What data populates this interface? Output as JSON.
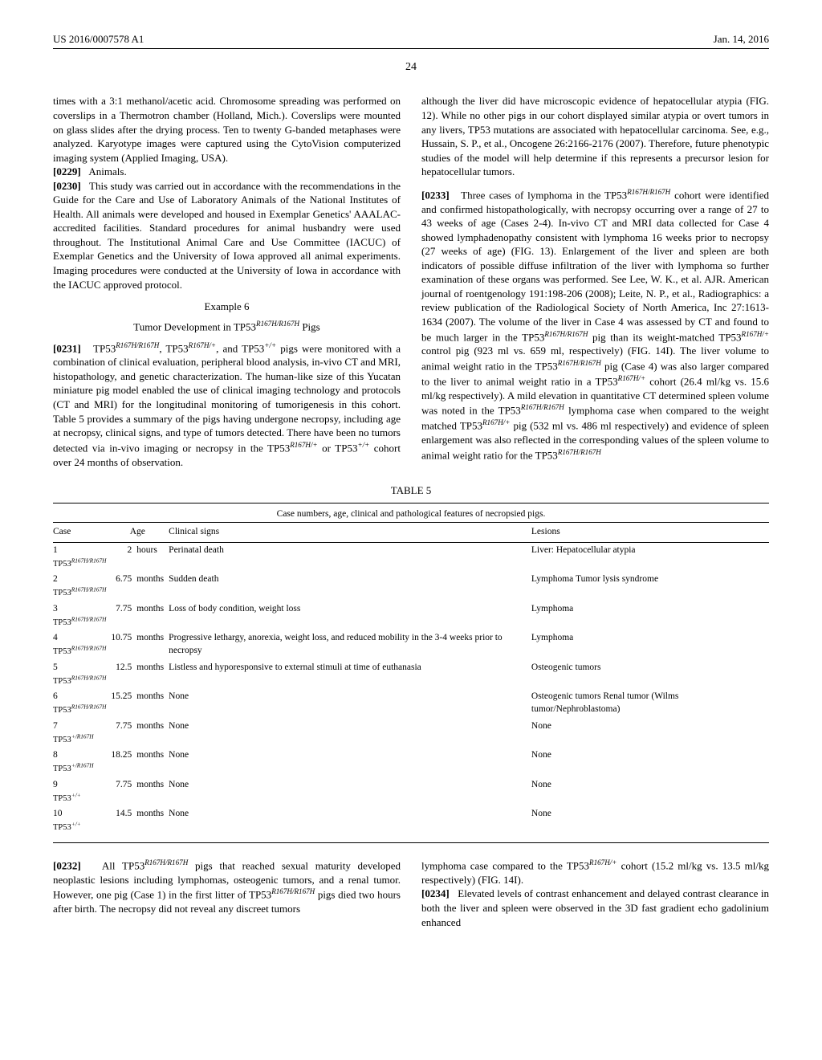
{
  "header": {
    "left": "US 2016/0007578 A1",
    "right": "Jan. 14, 2016"
  },
  "page_number": "24",
  "col1": {
    "p1": "times with a 3:1 methanol/acetic acid. Chromosome spreading was performed on coverslips in a Thermotron chamber (Holland, Mich.). Coverslips were mounted on glass slides after the drying process. Ten to twenty G-banded metaphases were analyzed. Karyotype images were captured using the CytoVision computerized imaging system (Applied Imaging, USA).",
    "p2_num": "[0229]",
    "p2": "Animals.",
    "p3_num": "[0230]",
    "p3": "This study was carried out in accordance with the recommendations in the Guide for the Care and Use of Laboratory Animals of the National Institutes of Health. All animals were developed and housed in Exemplar Genetics' AAALAC-accredited facilities. Standard procedures for animal husbandry were used throughout. The Institutional Animal Care and Use Committee (IACUC) of Exemplar Genetics and the University of Iowa approved all animal experiments. Imaging procedures were conducted at the University of Iowa in accordance with the IACUC approved protocol.",
    "ex_title": "Example 6",
    "sub_title": "Tumor Development in TP53",
    "sub_title_sup": "R167H/R167H",
    "sub_title_tail": " Pigs",
    "p4_num": "[0231]",
    "p4_a": "TP53",
    "p4_sup1": "R167H/R167H",
    "p4_b": ", TP53",
    "p4_sup2": "R167H/+",
    "p4_c": ", and TP53",
    "p4_sup3": "+/+",
    "p4_d": " pigs were monitored with a combination of clinical evaluation, peripheral blood analysis, in-vivo CT and MRI, histopathology, and genetic characterization. The human-like size of this Yucatan miniature pig model enabled the use of clinical imaging technology and protocols (CT and MRI) for the longitudinal monitoring of tumorigenesis in this cohort. Table 5 provides a summary of the pigs having undergone necropsy, including age at necropsy, clinical signs, and type of tumors detected. There have been no tumors detected via in-vivo imaging or necropsy in the TP53",
    "p4_sup4": "R167H/+",
    "p4_e": " or TP53",
    "p4_sup5": "+/+",
    "p4_f": " cohort over 24 months of observation."
  },
  "col2": {
    "p1": "although the liver did have microscopic evidence of hepatocellular atypia (FIG. 12). While no other pigs in our cohort displayed similar atypia or overt tumors in any livers, TP53 mutations are associated with hepatocellular carcinoma. See, e.g., Hussain, S. P., et al., Oncogene 26:2166-2176 (2007). Therefore, future phenotypic studies of the model will help determine if this represents a precursor lesion for hepatocellular tumors.",
    "p2_num": "[0233]",
    "p2_a": "Three cases of lymphoma in the TP53",
    "p2_sup1": "R167H/R167H",
    "p2_b": " cohort were identified and confirmed histopathologically, with necropsy occurring over a range of 27 to 43 weeks of age (Cases 2-4). In-vivo CT and MRI data collected for Case 4 showed lymphadenopathy consistent with lymphoma 16 weeks prior to necropsy (27 weeks of age) (FIG. 13). Enlargement of the liver and spleen are both indicators of possible diffuse infiltration of the liver with lymphoma so further examination of these organs was performed. See Lee, W. K., et al. AJR. American journal of roentgenology 191:198-206 (2008); Leite, N. P., et al., Radiographics: a review publication of the Radiological Society of North America, Inc 27:1613-1634 (2007). The volume of the liver in Case 4 was assessed by CT and found to be much larger in the TP53",
    "p2_sup2": "R167H/R167H",
    "p2_c": " pig than its weight-matched TP53",
    "p2_sup3": "R167H/+",
    "p2_d": " control pig (923 ml vs. 659 ml, respectively) (FIG. 14I). The liver volume to animal weight ratio in the TP53",
    "p2_sup4": "R167H/R167H",
    "p2_e": " pig (Case 4) was also larger compared to the liver to animal weight ratio in a TP53",
    "p2_sup5": "R167H/+",
    "p2_f": " cohort (26.4 ml/kg vs. 15.6 ml/kg respectively). A mild elevation in quantitative CT determined spleen volume was noted in the TP53",
    "p2_sup6": "R167H/R167H",
    "p2_g": " lymphoma case when compared to the weight matched TP53",
    "p2_sup7": "R167H/+",
    "p2_h": " pig (532 ml vs. 486 ml respectively) and evidence of spleen enlargement was also reflected in the corresponding values of the spleen volume to animal weight ratio for the TP53",
    "p2_sup8": "R167H/R167H"
  },
  "table": {
    "label": "TABLE 5",
    "caption": "Case numbers, age, clinical and pathological features of necropsied pigs.",
    "headers": {
      "c1": "Case",
      "c2": "Age",
      "c3": "Clinical signs",
      "c4": "Lesions"
    },
    "rows": [
      {
        "case": "1",
        "geno": "TP53",
        "geno_sup": "R167H/R167H",
        "age_n": "2",
        "age_u": "hours",
        "signs": "Perinatal death",
        "lesions": "Liver: Hepatocellular atypia"
      },
      {
        "case": "2",
        "geno": "TP53",
        "geno_sup": "R167H/R167H",
        "age_n": "6.75",
        "age_u": "months",
        "signs": "Sudden death",
        "lesions": "Lymphoma Tumor lysis syndrome"
      },
      {
        "case": "3",
        "geno": "TP53",
        "geno_sup": "R167H/R167H",
        "age_n": "7.75",
        "age_u": "months",
        "signs": "Loss of body condition, weight loss",
        "lesions": "Lymphoma"
      },
      {
        "case": "4",
        "geno": "TP53",
        "geno_sup": "R167H/R167H",
        "age_n": "10.75",
        "age_u": "months",
        "signs": "Progressive lethargy, anorexia, weight loss, and reduced mobility in the 3-4 weeks prior to necropsy",
        "lesions": "Lymphoma"
      },
      {
        "case": "5",
        "geno": "TP53",
        "geno_sup": "R167H/R167H",
        "age_n": "12.5",
        "age_u": "months",
        "signs": "Listless and hyporesponsive to external stimuli at time of euthanasia",
        "lesions": "Osteogenic tumors"
      },
      {
        "case": "6",
        "geno": "TP53",
        "geno_sup": "R167H/R167H",
        "age_n": "15.25",
        "age_u": "months",
        "signs": "None",
        "lesions": "Osteogenic tumors Renal tumor (Wilms tumor/Nephroblastoma)"
      },
      {
        "case": "7",
        "geno": "TP53",
        "geno_sup": "+/R167H",
        "age_n": "7.75",
        "age_u": "months",
        "signs": "None",
        "lesions": "None"
      },
      {
        "case": "8",
        "geno": "TP53",
        "geno_sup": "+/R167H",
        "age_n": "18.25",
        "age_u": "months",
        "signs": "None",
        "lesions": "None"
      },
      {
        "case": "9",
        "geno": "TP53",
        "geno_sup": "+/+",
        "age_n": "7.75",
        "age_u": "months",
        "signs": "None",
        "lesions": "None"
      },
      {
        "case": "10",
        "geno": "TP53",
        "geno_sup": "+/+",
        "age_n": "14.5",
        "age_u": "months",
        "signs": "None",
        "lesions": "None"
      }
    ]
  },
  "lower": {
    "left_num": "[0232]",
    "left_a": "All TP53",
    "left_sup1": "R167H/R167H",
    "left_b": " pigs that reached sexual maturity developed neoplastic lesions including lymphomas, osteogenic tumors, and a renal tumor. However, one pig (Case 1) in the first litter of TP53",
    "left_sup2": "R167H/R167H",
    "left_c": " pigs died two hours after birth. The necropsy did not reveal any discreet tumors",
    "right_a": "lymphoma case compared to the TP53",
    "right_sup1": "R167H/+",
    "right_b": " cohort (15.2 ml/kg vs. 13.5 ml/kg respectively) (FIG. 14I).",
    "right_num": "[0234]",
    "right_c": "Elevated levels of contrast enhancement and delayed contrast clearance in both the liver and spleen were observed in the 3D fast gradient echo gadolinium enhanced"
  }
}
